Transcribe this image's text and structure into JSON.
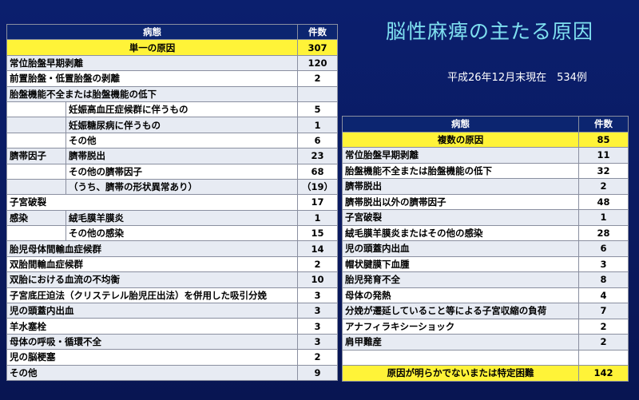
{
  "title": "脳性麻痺の主たる原因",
  "subtitle": "平成26年12月末現在　534例",
  "table1": {
    "headers": [
      "病態",
      "件数"
    ],
    "rows": [
      {
        "c1": "単一の原因",
        "c2": "",
        "num": "307",
        "hl": true
      },
      {
        "c1": "常位胎盤早期剥離",
        "c2": "",
        "num": "120"
      },
      {
        "c1": "前置胎盤・低置胎盤の剥離",
        "c2": "",
        "num": "2"
      },
      {
        "c1": "胎盤機能不全または胎盤機能の低下",
        "c2": "",
        "num": ""
      },
      {
        "c1": "",
        "c2": "妊娠高血圧症候群に伴うもの",
        "num": "5"
      },
      {
        "c1": "",
        "c2": "妊娠糖尿病に伴うもの",
        "num": "1"
      },
      {
        "c1": "",
        "c2": "その他",
        "num": "6"
      },
      {
        "c1": "臍帯因子",
        "c2": "臍帯脱出",
        "num": "23"
      },
      {
        "c1": "",
        "c2": "その他の臍帯因子",
        "num": "68"
      },
      {
        "c1": "",
        "c2": "（うち、臍帯の形状異常あり）",
        "num": "（19）"
      },
      {
        "c1": "子宮破裂",
        "c2": "",
        "num": "17"
      },
      {
        "c1": "感染",
        "c2": "絨毛膜羊膜炎",
        "num": "1"
      },
      {
        "c1": "",
        "c2": "その他の感染",
        "num": "15"
      },
      {
        "c1": "胎児母体間輸血症候群",
        "c2": "",
        "num": "14"
      },
      {
        "c1": "双胎間輸血症候群",
        "c2": "",
        "num": "2"
      },
      {
        "c1": "双胎における血流の不均衡",
        "c2": "",
        "num": "10"
      },
      {
        "c1": "子宮底圧迫法（クリステレル胎児圧出法）を併用した吸引分娩",
        "c2": "",
        "num": "3"
      },
      {
        "c1": "児の頭蓋内出血",
        "c2": "",
        "num": "3"
      },
      {
        "c1": "羊水塞栓",
        "c2": "",
        "num": "3"
      },
      {
        "c1": "母体の呼吸・循環不全",
        "c2": "",
        "num": "3"
      },
      {
        "c1": "児の脳梗塞",
        "c2": "",
        "num": "2"
      },
      {
        "c1": "その他",
        "c2": "",
        "num": "9"
      }
    ]
  },
  "table2": {
    "headers": [
      "病態",
      "件数"
    ],
    "rows": [
      {
        "c1": "複数の原因",
        "num": "85",
        "hl": true
      },
      {
        "c1": "常位胎盤早期剥離",
        "num": "11"
      },
      {
        "c1": "胎盤機能不全または胎盤機能の低下",
        "num": "32"
      },
      {
        "c1": "臍帯脱出",
        "num": "2"
      },
      {
        "c1": "臍帯脱出以外の臍帯因子",
        "num": "48"
      },
      {
        "c1": "子宮破裂",
        "num": "1"
      },
      {
        "c1": "絨毛膜羊膜炎またはその他の感染",
        "num": "28"
      },
      {
        "c1": "児の頭蓋内出血",
        "num": "6"
      },
      {
        "c1": "帽状腱膜下血腫",
        "num": "3"
      },
      {
        "c1": "胎児発育不全",
        "num": "8"
      },
      {
        "c1": "母体の発熱",
        "num": "4"
      },
      {
        "c1": "分娩が遷延していること等による子宮収縮の負荷",
        "num": "7"
      },
      {
        "c1": "アナフィラキシーショック",
        "num": "2"
      },
      {
        "c1": "肩甲難産",
        "num": "2"
      },
      {
        "c1": "",
        "num": ""
      },
      {
        "c1": "原因が明らかでないまたは特定困難",
        "num": "142",
        "hl": true
      }
    ]
  }
}
